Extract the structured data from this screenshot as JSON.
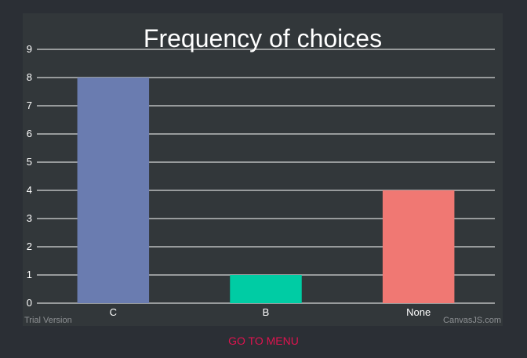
{
  "chart_data": {
    "type": "bar",
    "title": "Frequency of choices",
    "categories": [
      "C",
      "B",
      "None"
    ],
    "values": [
      8,
      1,
      4
    ],
    "colors": [
      "#6a7cb0",
      "#00cca4",
      "#f07873"
    ],
    "ylim": [
      0,
      9
    ],
    "yticks": [
      0,
      1,
      2,
      3,
      4,
      5,
      6,
      7,
      8,
      9
    ],
    "grid": true,
    "xlabel": "",
    "ylabel": ""
  },
  "footer": {
    "trial_label": "Trial Version",
    "credit_label": "CanvasJS.com"
  },
  "menu": {
    "go_to_menu_label": "GO TO MENU"
  }
}
